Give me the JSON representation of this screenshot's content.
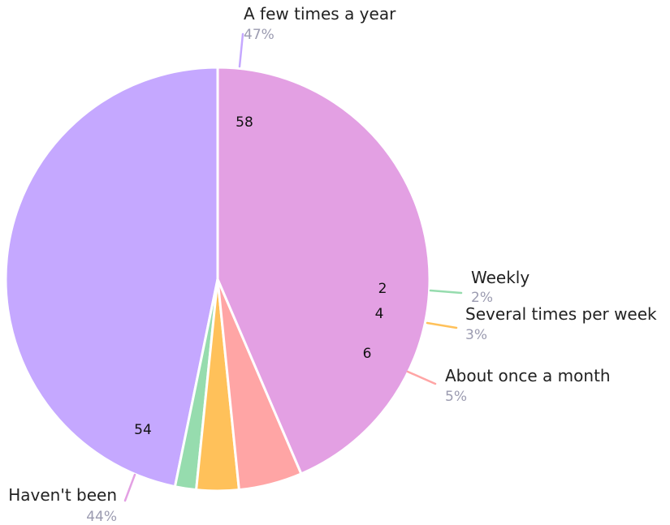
{
  "chart_data": {
    "type": "pie",
    "slices": [
      {
        "label": "A few times a year",
        "value": 58,
        "percent_label": "47%",
        "color": "#c5a8ff"
      },
      {
        "label": "Weekly",
        "value": 2,
        "percent_label": "2%",
        "color": "#96dcae"
      },
      {
        "label": "Several times per week",
        "value": 4,
        "percent_label": "3%",
        "color": "#ffc15a"
      },
      {
        "label": "About once a month",
        "value": 6,
        "percent_label": "5%",
        "color": "#ffa5a5"
      },
      {
        "label": "Haven't been",
        "value": 54,
        "percent_label": "44%",
        "color": "#e3a0e3"
      }
    ]
  }
}
